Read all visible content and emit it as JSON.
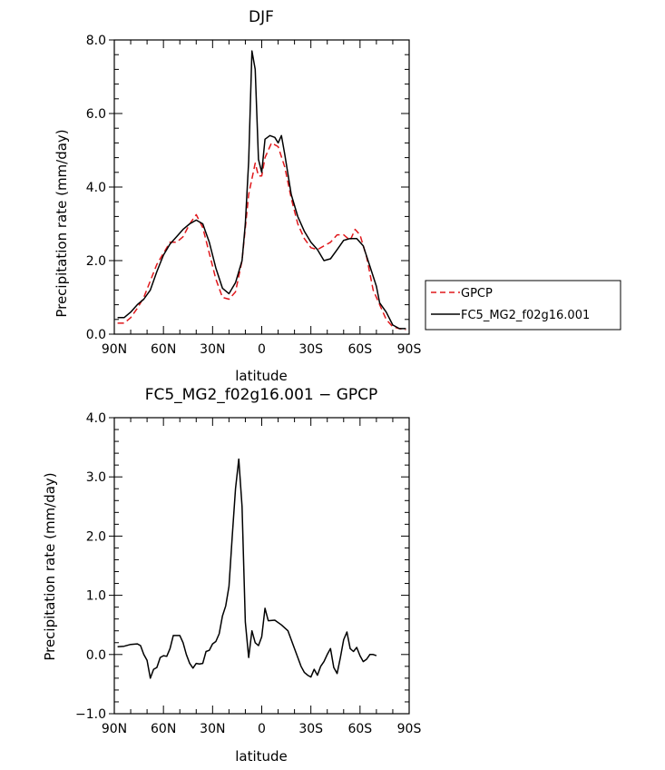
{
  "chart_data": [
    {
      "type": "line",
      "title": "DJF",
      "xlabel": "latitude",
      "ylabel": "Precipitation rate (mm/day)",
      "xlim": [
        90,
        -90
      ],
      "ylim": [
        0,
        8
      ],
      "x_ticks": [
        90,
        60,
        30,
        0,
        -30,
        -60,
        -90
      ],
      "x_tick_labels": [
        "90N",
        "60N",
        "30N",
        "0",
        "30S",
        "60S",
        "90S"
      ],
      "y_ticks": [
        0,
        2,
        4,
        6,
        8
      ],
      "y_tick_labels": [
        "0.0",
        "2.0",
        "4.0",
        "6.0",
        "8.0"
      ],
      "legend_position": "right",
      "series": [
        {
          "name": "GPCP",
          "color": "#e0181c",
          "style": "dashed",
          "points": [
            [
              88,
              0.3
            ],
            [
              84,
              0.3
            ],
            [
              80,
              0.45
            ],
            [
              76,
              0.7
            ],
            [
              72,
              1.0
            ],
            [
              68,
              1.45
            ],
            [
              64,
              1.9
            ],
            [
              60,
              2.2
            ],
            [
              56,
              2.5
            ],
            [
              52,
              2.5
            ],
            [
              48,
              2.65
            ],
            [
              44,
              3.0
            ],
            [
              40,
              3.25
            ],
            [
              36,
              2.9
            ],
            [
              32,
              2.2
            ],
            [
              28,
              1.5
            ],
            [
              24,
              1.0
            ],
            [
              20,
              0.95
            ],
            [
              16,
              1.15
            ],
            [
              12,
              2.0
            ],
            [
              8,
              3.8
            ],
            [
              4,
              4.65
            ],
            [
              2,
              4.3
            ],
            [
              0,
              4.3
            ],
            [
              -2,
              4.8
            ],
            [
              -6,
              5.2
            ],
            [
              -10,
              5.1
            ],
            [
              -14,
              4.55
            ],
            [
              -18,
              3.7
            ],
            [
              -22,
              3.0
            ],
            [
              -26,
              2.6
            ],
            [
              -30,
              2.35
            ],
            [
              -34,
              2.3
            ],
            [
              -38,
              2.4
            ],
            [
              -42,
              2.5
            ],
            [
              -46,
              2.7
            ],
            [
              -50,
              2.7
            ],
            [
              -54,
              2.55
            ],
            [
              -57,
              2.85
            ],
            [
              -60,
              2.7
            ],
            [
              -64,
              2.1
            ],
            [
              -68,
              1.2
            ],
            [
              -72,
              0.8
            ],
            [
              -76,
              0.4
            ],
            [
              -80,
              0.2
            ],
            [
              -84,
              0.15
            ],
            [
              -88,
              0.12
            ]
          ]
        },
        {
          "name": "FC5_MG2_f02g16.001",
          "color": "#000000",
          "style": "solid",
          "points": [
            [
              88,
              0.45
            ],
            [
              84,
              0.45
            ],
            [
              80,
              0.6
            ],
            [
              76,
              0.8
            ],
            [
              72,
              0.95
            ],
            [
              68,
              1.2
            ],
            [
              64,
              1.7
            ],
            [
              60,
              2.15
            ],
            [
              56,
              2.45
            ],
            [
              52,
              2.65
            ],
            [
              48,
              2.85
            ],
            [
              44,
              3.0
            ],
            [
              40,
              3.1
            ],
            [
              36,
              3.0
            ],
            [
              32,
              2.5
            ],
            [
              28,
              1.8
            ],
            [
              24,
              1.25
            ],
            [
              20,
              1.1
            ],
            [
              16,
              1.4
            ],
            [
              12,
              2.0
            ],
            [
              10,
              3.0
            ],
            [
              8,
              4.7
            ],
            [
              6,
              7.7
            ],
            [
              4,
              7.2
            ],
            [
              2,
              4.75
            ],
            [
              0,
              4.4
            ],
            [
              -2,
              5.3
            ],
            [
              -5,
              5.4
            ],
            [
              -8,
              5.35
            ],
            [
              -10,
              5.2
            ],
            [
              -12,
              5.4
            ],
            [
              -14,
              4.9
            ],
            [
              -18,
              3.8
            ],
            [
              -22,
              3.2
            ],
            [
              -26,
              2.8
            ],
            [
              -30,
              2.5
            ],
            [
              -34,
              2.3
            ],
            [
              -38,
              2.0
            ],
            [
              -42,
              2.05
            ],
            [
              -46,
              2.3
            ],
            [
              -50,
              2.55
            ],
            [
              -54,
              2.6
            ],
            [
              -58,
              2.6
            ],
            [
              -62,
              2.4
            ],
            [
              -66,
              1.85
            ],
            [
              -70,
              1.3
            ],
            [
              -72,
              0.85
            ],
            [
              -76,
              0.6
            ],
            [
              -80,
              0.25
            ],
            [
              -84,
              0.15
            ],
            [
              -88,
              0.15
            ]
          ]
        }
      ]
    },
    {
      "type": "line",
      "title": "FC5_MG2_f02g16.001 − GPCP",
      "xlabel": "latitude",
      "ylabel": "Precipitation rate (mm/day)",
      "xlim": [
        90,
        -90
      ],
      "ylim": [
        -1,
        4
      ],
      "x_ticks": [
        90,
        60,
        30,
        0,
        -30,
        -60,
        -90
      ],
      "x_tick_labels": [
        "90N",
        "60N",
        "30N",
        "0",
        "30S",
        "60S",
        "90S"
      ],
      "y_ticks": [
        -1,
        0,
        1,
        2,
        3,
        4
      ],
      "y_tick_labels": [
        "−1.0",
        "0.0",
        "1.0",
        "2.0",
        "3.0",
        "4.0"
      ],
      "series": [
        {
          "color": "#000000",
          "style": "solid",
          "points": [
            [
              88,
              0.13
            ],
            [
              84,
              0.14
            ],
            [
              80,
              0.17
            ],
            [
              76,
              0.18
            ],
            [
              74,
              0.15
            ],
            [
              72,
              0.0
            ],
            [
              70,
              -0.1
            ],
            [
              68,
              -0.4
            ],
            [
              66,
              -0.25
            ],
            [
              64,
              -0.22
            ],
            [
              62,
              -0.05
            ],
            [
              60,
              -0.02
            ],
            [
              58,
              -0.03
            ],
            [
              56,
              0.1
            ],
            [
              54,
              0.32
            ],
            [
              52,
              0.32
            ],
            [
              50,
              0.32
            ],
            [
              48,
              0.2
            ],
            [
              46,
              0.0
            ],
            [
              44,
              -0.15
            ],
            [
              42,
              -0.23
            ],
            [
              40,
              -0.15
            ],
            [
              38,
              -0.16
            ],
            [
              36,
              -0.15
            ],
            [
              34,
              0.05
            ],
            [
              32,
              0.07
            ],
            [
              30,
              0.18
            ],
            [
              28,
              0.22
            ],
            [
              26,
              0.35
            ],
            [
              24,
              0.65
            ],
            [
              22,
              0.82
            ],
            [
              20,
              1.15
            ],
            [
              18,
              2.0
            ],
            [
              16,
              2.8
            ],
            [
              14,
              3.3
            ],
            [
              12,
              2.5
            ],
            [
              10,
              0.55
            ],
            [
              8,
              -0.05
            ],
            [
              6,
              0.4
            ],
            [
              4,
              0.2
            ],
            [
              2,
              0.15
            ],
            [
              0,
              0.3
            ],
            [
              -2,
              0.78
            ],
            [
              -4,
              0.57
            ],
            [
              -8,
              0.58
            ],
            [
              -12,
              0.5
            ],
            [
              -16,
              0.4
            ],
            [
              -20,
              0.1
            ],
            [
              -24,
              -0.2
            ],
            [
              -26,
              -0.3
            ],
            [
              -28,
              -0.35
            ],
            [
              -30,
              -0.38
            ],
            [
              -32,
              -0.25
            ],
            [
              -34,
              -0.35
            ],
            [
              -36,
              -0.2
            ],
            [
              -38,
              -0.12
            ],
            [
              -40,
              0.0
            ],
            [
              -42,
              0.1
            ],
            [
              -44,
              -0.22
            ],
            [
              -46,
              -0.32
            ],
            [
              -48,
              -0.05
            ],
            [
              -50,
              0.25
            ],
            [
              -52,
              0.38
            ],
            [
              -54,
              0.1
            ],
            [
              -56,
              0.05
            ],
            [
              -58,
              0.12
            ],
            [
              -60,
              -0.02
            ],
            [
              -62,
              -0.12
            ],
            [
              -64,
              -0.08
            ],
            [
              -66,
              0.0
            ],
            [
              -68,
              0.0
            ],
            [
              -70,
              -0.02
            ]
          ]
        }
      ]
    }
  ]
}
